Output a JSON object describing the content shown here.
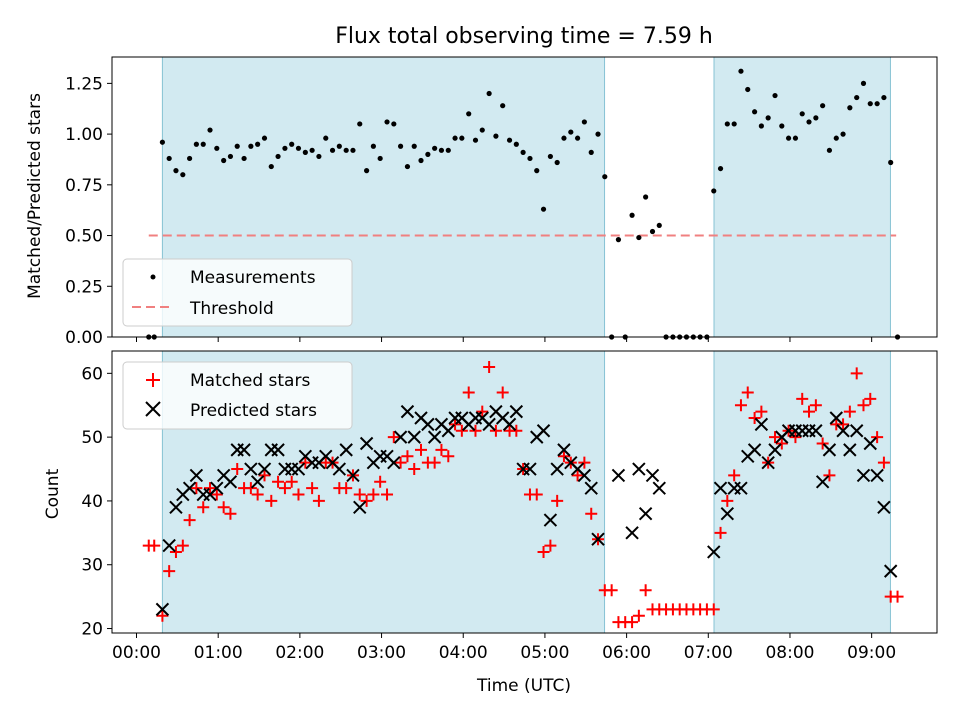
{
  "figure": {
    "title": "Flux total observing time = 7.59 h",
    "colors": {
      "shade": "#add8e6",
      "measure": "#000000",
      "threshold": "#f08080",
      "matched": "#ff0000",
      "predicted": "#000000"
    }
  },
  "chart_data": [
    {
      "type": "scatter",
      "panel": "top",
      "ylabel": "Matched/Predicted stars",
      "xlabel": "",
      "x_unit": "hours (UTC)",
      "xlim": [
        -0.3,
        9.8
      ],
      "ylim": [
        0.0,
        1.38
      ],
      "yticks": [
        0.0,
        0.25,
        0.5,
        0.75,
        1.0,
        1.25
      ],
      "ytick_labels": [
        "0.00",
        "0.25",
        "0.50",
        "0.75",
        "1.00",
        "1.25"
      ],
      "shaded_spans": [
        [
          0.317,
          5.73
        ],
        [
          7.07,
          9.23
        ]
      ],
      "threshold": {
        "y": 0.5,
        "x_range": [
          0.15,
          9.3
        ]
      },
      "legend": {
        "position": "lower-left",
        "entries": [
          "Measurements",
          "Threshold"
        ]
      },
      "series": [
        {
          "name": "Measurements",
          "x": [
            0.15,
            0.217,
            0.317,
            0.4,
            0.483,
            0.567,
            0.65,
            0.733,
            0.817,
            0.9,
            0.983,
            1.067,
            1.15,
            1.233,
            1.317,
            1.4,
            1.483,
            1.567,
            1.65,
            1.733,
            1.817,
            1.9,
            1.983,
            2.067,
            2.15,
            2.233,
            2.317,
            2.4,
            2.483,
            2.567,
            2.65,
            2.733,
            2.817,
            2.9,
            2.983,
            3.067,
            3.15,
            3.233,
            3.317,
            3.4,
            3.483,
            3.567,
            3.65,
            3.733,
            3.817,
            3.9,
            3.983,
            4.067,
            4.15,
            4.233,
            4.317,
            4.4,
            4.483,
            4.567,
            4.65,
            4.733,
            4.817,
            4.9,
            4.983,
            5.067,
            5.15,
            5.233,
            5.317,
            5.4,
            5.483,
            5.567,
            5.65,
            5.733,
            5.817,
            5.9,
            5.983,
            6.067,
            6.15,
            6.233,
            6.317,
            6.4,
            6.483,
            6.567,
            6.65,
            6.733,
            6.817,
            6.9,
            6.983,
            7.067,
            7.15,
            7.233,
            7.317,
            7.4,
            7.483,
            7.567,
            7.65,
            7.733,
            7.817,
            7.9,
            7.983,
            8.067,
            8.15,
            8.233,
            8.317,
            8.4,
            8.483,
            8.567,
            8.65,
            8.733,
            8.817,
            8.9,
            8.983,
            9.067,
            9.15,
            9.233,
            9.317
          ],
          "y": [
            0.0,
            0.0,
            0.96,
            0.88,
            0.82,
            0.8,
            0.88,
            0.95,
            0.95,
            1.02,
            0.93,
            0.87,
            0.89,
            0.94,
            0.88,
            0.94,
            0.95,
            0.98,
            0.84,
            0.89,
            0.93,
            0.95,
            0.93,
            0.91,
            0.92,
            0.89,
            0.98,
            0.92,
            0.94,
            0.92,
            0.92,
            1.05,
            0.82,
            0.94,
            0.88,
            1.06,
            1.05,
            0.94,
            0.84,
            0.94,
            0.87,
            0.9,
            0.93,
            0.92,
            0.92,
            0.98,
            0.98,
            1.1,
            0.97,
            1.02,
            1.2,
            0.99,
            1.14,
            0.97,
            0.95,
            0.91,
            0.88,
            0.82,
            0.63,
            0.89,
            0.86,
            0.98,
            1.01,
            0.98,
            1.06,
            0.91,
            1.0,
            0.79,
            0.0,
            0.48,
            0.0,
            0.6,
            0.49,
            0.69,
            0.52,
            0.55,
            0.0,
            0.0,
            0.0,
            0.0,
            0.0,
            0.0,
            0.0,
            0.72,
            0.83,
            1.05,
            1.05,
            1.31,
            1.22,
            1.11,
            1.04,
            1.08,
            1.19,
            1.04,
            0.98,
            0.98,
            1.1,
            1.06,
            1.08,
            1.14,
            0.92,
            0.98,
            1.0,
            1.13,
            1.18,
            1.25,
            1.15,
            1.15,
            1.18,
            0.86,
            0.0
          ]
        }
      ]
    },
    {
      "type": "scatter",
      "panel": "bottom",
      "xlabel": "Time (UTC)",
      "ylabel": "Count",
      "x_unit": "hours (UTC)",
      "xlim": [
        -0.3,
        9.8
      ],
      "ylim": [
        19.3,
        63.5
      ],
      "yticks": [
        20,
        30,
        40,
        50,
        60
      ],
      "ytick_labels": [
        "20",
        "30",
        "40",
        "50",
        "60"
      ],
      "xticks": [
        0,
        1,
        2,
        3,
        4,
        5,
        6,
        7,
        8,
        9
      ],
      "xtick_labels": [
        "00:00",
        "01:00",
        "02:00",
        "03:00",
        "04:00",
        "05:00",
        "06:00",
        "07:00",
        "08:00",
        "09:00"
      ],
      "shaded_spans": [
        [
          0.317,
          5.73
        ],
        [
          7.07,
          9.23
        ]
      ],
      "legend": {
        "position": "top-left",
        "entries": [
          "Matched stars",
          "Predicted stars"
        ]
      },
      "series": [
        {
          "name": "Matched stars",
          "marker": "plus",
          "x": [
            0.15,
            0.217,
            0.317,
            0.4,
            0.483,
            0.567,
            0.65,
            0.733,
            0.817,
            0.9,
            0.983,
            1.067,
            1.15,
            1.233,
            1.317,
            1.4,
            1.483,
            1.567,
            1.65,
            1.733,
            1.817,
            1.9,
            1.983,
            2.067,
            2.15,
            2.233,
            2.317,
            2.4,
            2.483,
            2.567,
            2.65,
            2.733,
            2.817,
            2.9,
            2.983,
            3.067,
            3.15,
            3.233,
            3.317,
            3.4,
            3.483,
            3.567,
            3.65,
            3.733,
            3.817,
            3.9,
            3.983,
            4.067,
            4.15,
            4.233,
            4.317,
            4.4,
            4.483,
            4.567,
            4.65,
            4.733,
            4.817,
            4.9,
            4.983,
            5.067,
            5.15,
            5.233,
            5.317,
            5.4,
            5.483,
            5.567,
            5.65,
            5.733,
            5.817,
            5.9,
            5.983,
            6.067,
            6.15,
            6.233,
            6.317,
            6.4,
            6.483,
            6.567,
            6.65,
            6.733,
            6.817,
            6.9,
            6.983,
            7.067,
            7.15,
            7.233,
            7.317,
            7.4,
            7.483,
            7.567,
            7.65,
            7.733,
            7.817,
            7.9,
            7.983,
            8.067,
            8.15,
            8.233,
            8.317,
            8.4,
            8.483,
            8.567,
            8.65,
            8.733,
            8.817,
            8.9,
            8.983,
            9.067,
            9.15,
            9.233,
            9.317
          ],
          "y": [
            33,
            33,
            22,
            29,
            32,
            33,
            37,
            42,
            39,
            42,
            41,
            39,
            38,
            45,
            42,
            42,
            41,
            44,
            40,
            43,
            42,
            43,
            41,
            46,
            42,
            40,
            46,
            46,
            42,
            42,
            44,
            41,
            40,
            41,
            43,
            41,
            50,
            46,
            47,
            45,
            48,
            46,
            46,
            48,
            47,
            52,
            51,
            57,
            51,
            54,
            61,
            51,
            57,
            51,
            51,
            45,
            41,
            41,
            32,
            33,
            40,
            47,
            46,
            44,
            46,
            38,
            34,
            26,
            26,
            21,
            21,
            21,
            22,
            26,
            23,
            23,
            23,
            23,
            23,
            23,
            23,
            23,
            23,
            23,
            35,
            40,
            44,
            55,
            57,
            53,
            54,
            46,
            50,
            49,
            51,
            50,
            56,
            54,
            55,
            49,
            44,
            52,
            52,
            54,
            60,
            55,
            56,
            50,
            46,
            25,
            25
          ]
        },
        {
          "name": "Predicted stars",
          "marker": "x",
          "x": [
            0.317,
            0.4,
            0.483,
            0.567,
            0.65,
            0.733,
            0.817,
            0.9,
            0.983,
            1.067,
            1.15,
            1.233,
            1.317,
            1.4,
            1.483,
            1.567,
            1.65,
            1.733,
            1.817,
            1.9,
            1.983,
            2.067,
            2.15,
            2.233,
            2.317,
            2.4,
            2.483,
            2.567,
            2.65,
            2.733,
            2.817,
            2.9,
            2.983,
            3.067,
            3.15,
            3.233,
            3.317,
            3.4,
            3.483,
            3.567,
            3.65,
            3.733,
            3.817,
            3.9,
            3.983,
            4.067,
            4.15,
            4.233,
            4.317,
            4.4,
            4.483,
            4.567,
            4.65,
            4.733,
            4.817,
            4.9,
            4.983,
            5.067,
            5.15,
            5.233,
            5.317,
            5.4,
            5.483,
            5.567,
            5.65,
            5.9,
            6.067,
            6.15,
            6.233,
            6.317,
            6.4,
            7.067,
            7.15,
            7.233,
            7.317,
            7.4,
            7.483,
            7.567,
            7.65,
            7.733,
            7.817,
            7.9,
            7.983,
            8.067,
            8.15,
            8.233,
            8.317,
            8.4,
            8.483,
            8.567,
            8.65,
            8.733,
            8.817,
            8.9,
            8.983,
            9.067,
            9.15,
            9.233
          ],
          "y": [
            23,
            33,
            39,
            41,
            42,
            44,
            41,
            41,
            42,
            44,
            43,
            48,
            48,
            45,
            43,
            45,
            48,
            48,
            45,
            45,
            45,
            47,
            46,
            46,
            47,
            46,
            45,
            48,
            44,
            39,
            49,
            46,
            47,
            47,
            46,
            50,
            54,
            50,
            53,
            52,
            50,
            52,
            51,
            53,
            53,
            52,
            53,
            53,
            52,
            54,
            53,
            52,
            54,
            45,
            45,
            50,
            51,
            37,
            45,
            48,
            46,
            45,
            44,
            42,
            34,
            44,
            35,
            45,
            38,
            44,
            42,
            32,
            42,
            38,
            42,
            42,
            47,
            48,
            52,
            46,
            48,
            50,
            51,
            51,
            51,
            51,
            51,
            43,
            48,
            53,
            51,
            48,
            51,
            44,
            49,
            44,
            39,
            29
          ]
        }
      ]
    }
  ]
}
